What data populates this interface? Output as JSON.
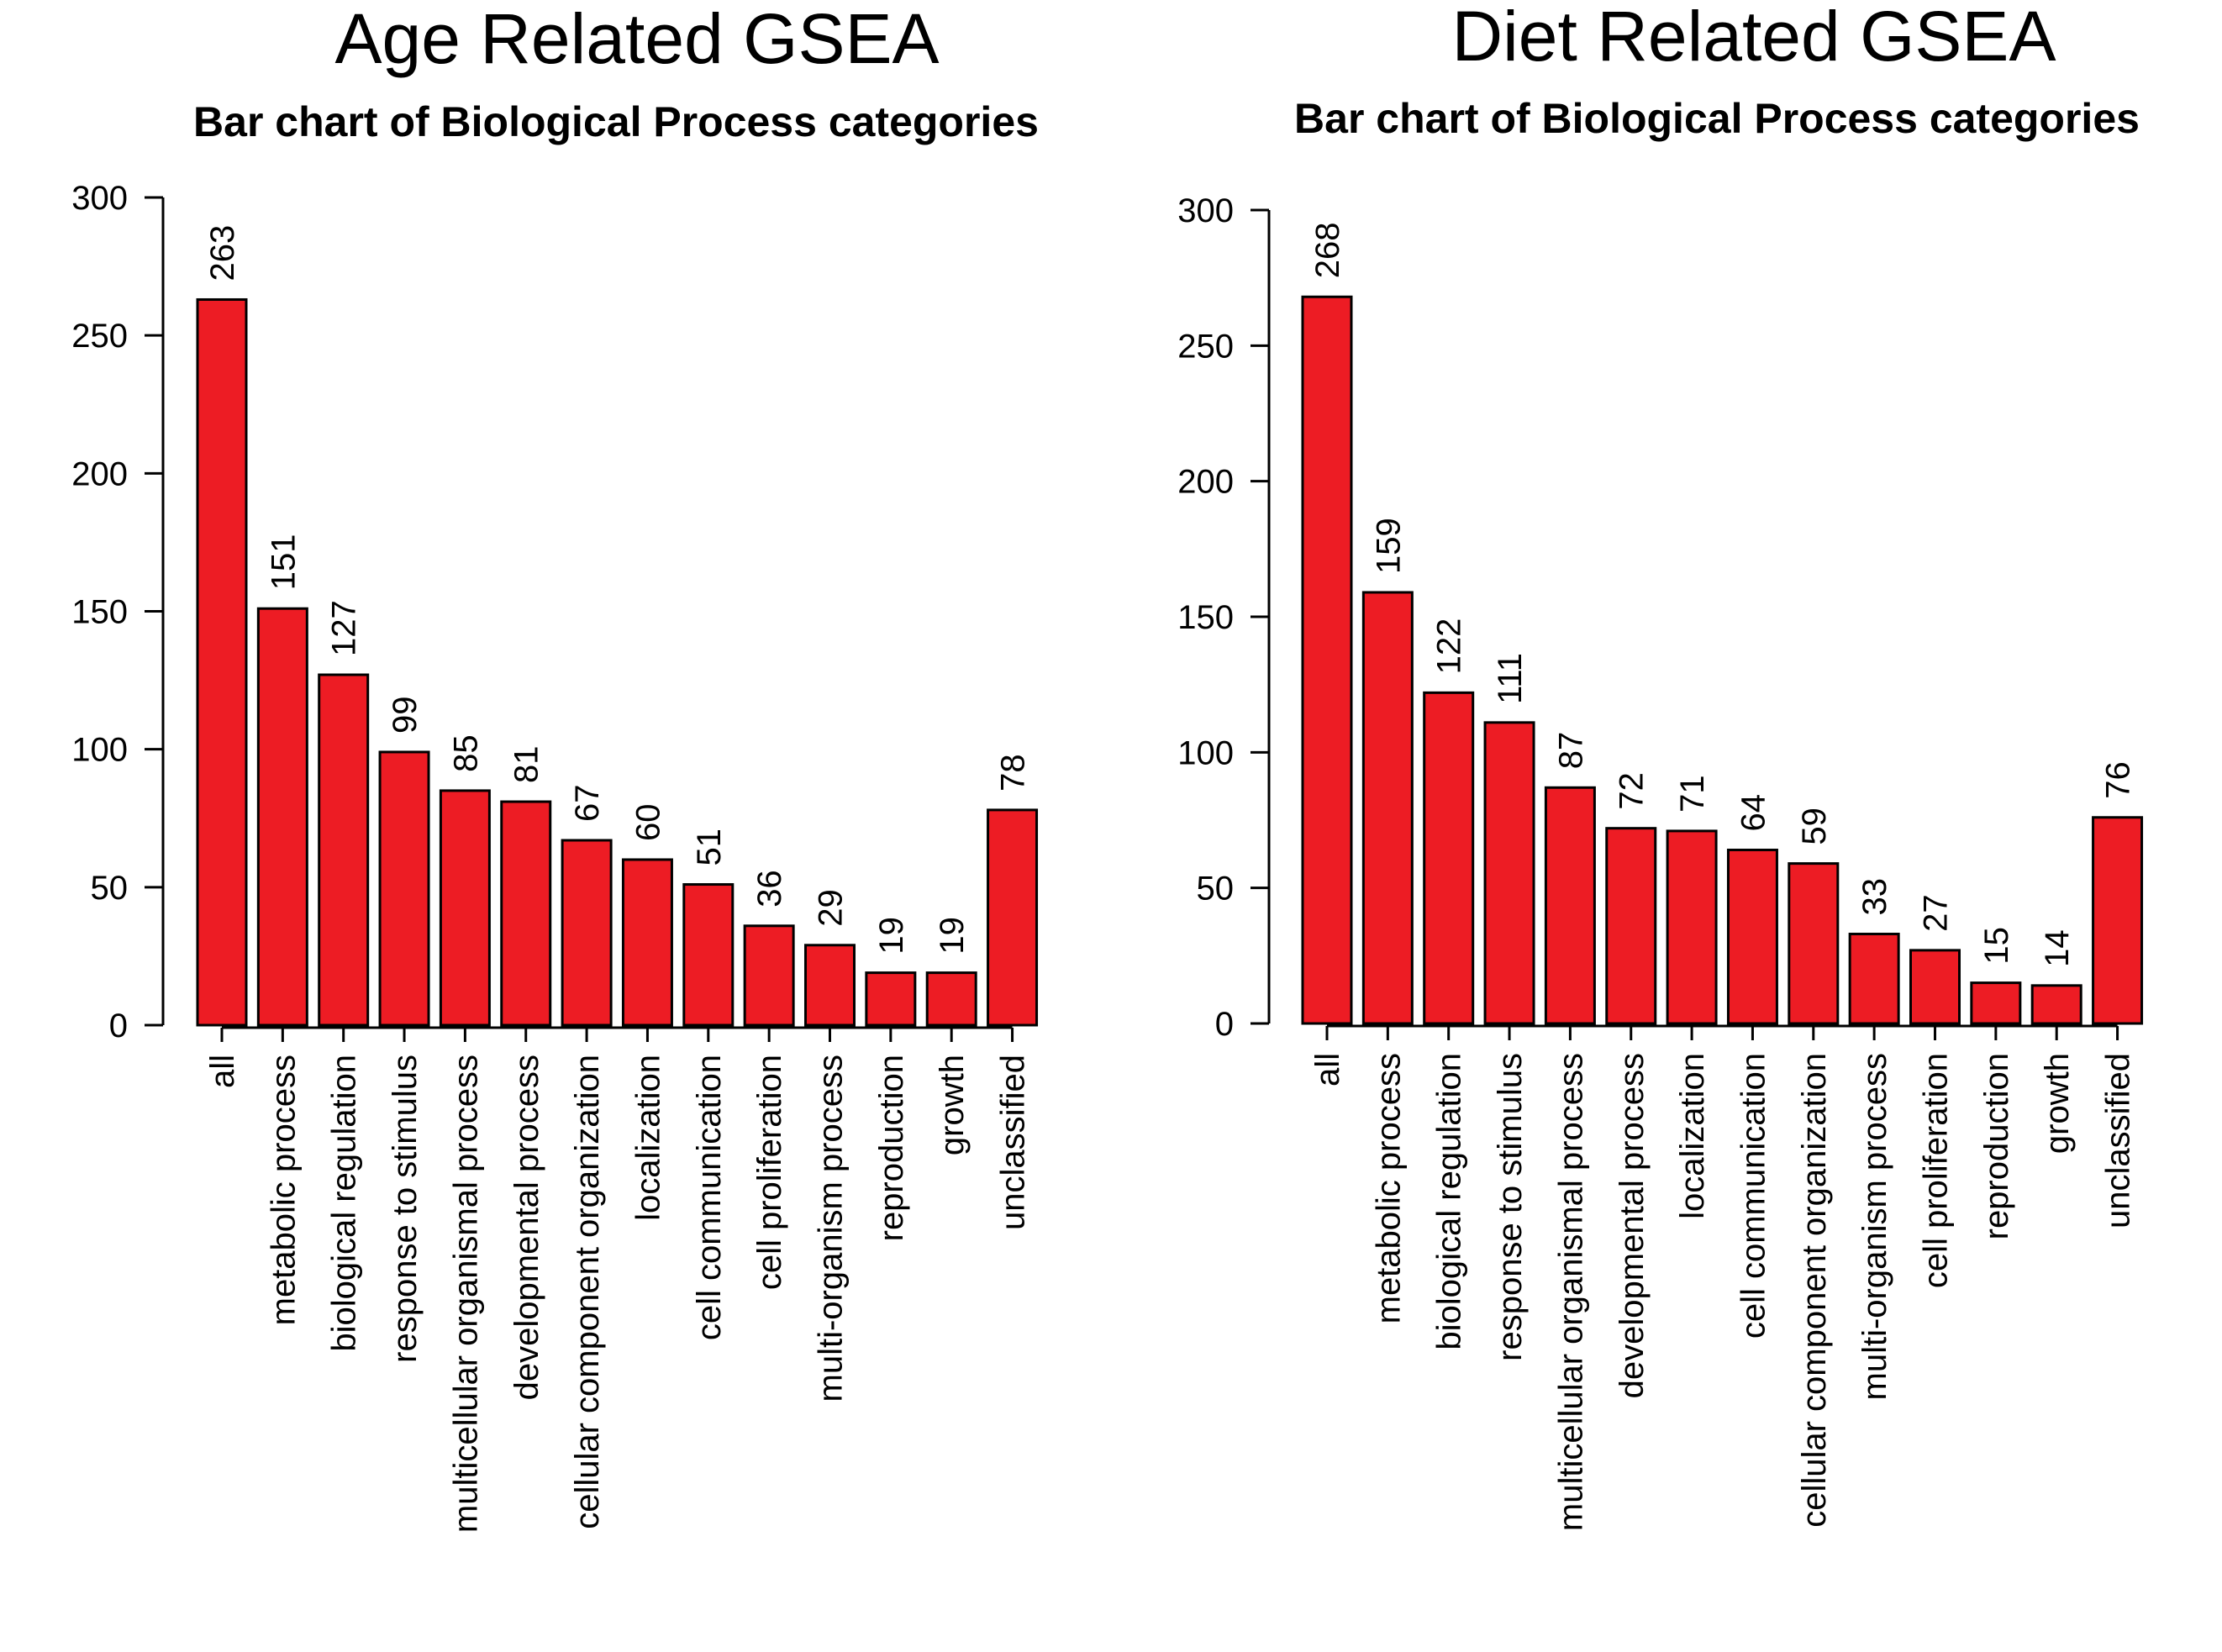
{
  "bar_color": "#ed1c24",
  "chart_data": [
    {
      "type": "bar",
      "title": "Age Related GSEA",
      "subtitle": "Bar chart of Biological Process categories",
      "xlabel": "",
      "ylabel": "",
      "ylim": [
        0,
        300
      ],
      "yticks": [
        0,
        50,
        100,
        150,
        200,
        250,
        300
      ],
      "grid": false,
      "categories": [
        "all",
        "metabolic process",
        "biological regulation",
        "response to stimulus",
        "multicellular organismal process",
        "developmental process",
        "cellular component organization",
        "localization",
        "cell communication",
        "cell proliferation",
        "multi-organism process",
        "reproduction",
        "growth",
        "unclassified"
      ],
      "values": [
        263,
        151,
        127,
        99,
        85,
        81,
        67,
        60,
        51,
        36,
        29,
        19,
        19,
        78
      ]
    },
    {
      "type": "bar",
      "title": "Diet Related GSEA",
      "subtitle": "Bar chart of Biological Process categories",
      "xlabel": "",
      "ylabel": "",
      "ylim": [
        0,
        300
      ],
      "yticks": [
        0,
        50,
        100,
        150,
        200,
        250,
        300
      ],
      "grid": false,
      "categories": [
        "all",
        "metabolic process",
        "biological regulation",
        "response to stimulus",
        "multicellular organismal process",
        "developmental process",
        "localization",
        "cell communication",
        "cellular component organization",
        "multi-organism process",
        "cell proliferation",
        "reproduction",
        "growth",
        "unclassified"
      ],
      "values": [
        268,
        159,
        122,
        111,
        87,
        72,
        71,
        64,
        59,
        33,
        27,
        15,
        14,
        76
      ]
    }
  ]
}
